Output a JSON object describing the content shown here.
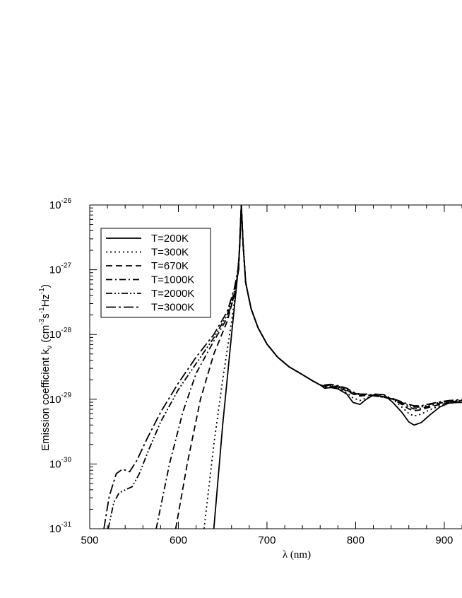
{
  "chart_data": {
    "type": "line",
    "xlabel": "λ (nm)",
    "ylabel": {
      "main": "Emission coefficient k",
      "sub": "ν",
      "units_open": " (cm",
      "units_exp1": "-3",
      "units_s": "s",
      "units_exp2": "-1",
      "units_hz": "Hz",
      "units_exp3": "-1",
      "units_close": ")"
    },
    "xlim": [
      500,
      920
    ],
    "ylim_log10": [
      -31,
      -26
    ],
    "y_scale": "log",
    "grid": false,
    "legend_position": "top-left",
    "x_ticks": [
      {
        "value": 500,
        "label": "500"
      },
      {
        "value": 600,
        "label": "600"
      },
      {
        "value": 700,
        "label": "700"
      },
      {
        "value": 800,
        "label": "800"
      },
      {
        "value": 900,
        "label": "900"
      }
    ],
    "y_ticks": [
      {
        "value": -26,
        "base": "10",
        "exp": "-26"
      },
      {
        "value": -27,
        "base": "10",
        "exp": "-27"
      },
      {
        "value": -28,
        "base": "10",
        "exp": "-28"
      },
      {
        "value": -29,
        "base": "10",
        "exp": "-29"
      },
      {
        "value": -30,
        "base": "10",
        "exp": "-30"
      },
      {
        "value": -31,
        "base": "10",
        "exp": "-31"
      }
    ],
    "series": [
      {
        "name": "T=200K",
        "dash": "solid",
        "points": [
          [
            640,
            -31
          ],
          [
            650,
            -29.4
          ],
          [
            660,
            -28.0
          ],
          [
            666,
            -27.2
          ],
          [
            669,
            -26.7
          ],
          [
            671,
            -26.0
          ]
        ]
      },
      {
        "name": "T=300K",
        "dash": "dotted",
        "points": [
          [
            629,
            -31
          ],
          [
            640,
            -29.7
          ],
          [
            650,
            -28.7
          ],
          [
            660,
            -27.8
          ],
          [
            666,
            -27.2
          ],
          [
            669,
            -26.7
          ],
          [
            671,
            -26.0
          ]
        ]
      },
      {
        "name": "T=670K",
        "dash": "dashed",
        "points": [
          [
            597,
            -31
          ],
          [
            610,
            -30.0
          ],
          [
            625,
            -29.0
          ],
          [
            640,
            -28.3
          ],
          [
            655,
            -27.8
          ],
          [
            663,
            -27.4
          ],
          [
            668,
            -27.0
          ],
          [
            671,
            -26.0
          ]
        ]
      },
      {
        "name": "T=1000K",
        "dash": "dashdot",
        "points": [
          [
            575,
            -31
          ],
          [
            590,
            -30.0
          ],
          [
            605,
            -29.2
          ],
          [
            620,
            -28.6
          ],
          [
            640,
            -28.1
          ],
          [
            655,
            -27.75
          ],
          [
            663,
            -27.4
          ],
          [
            668,
            -27.0
          ],
          [
            671,
            -26.0
          ]
        ]
      },
      {
        "name": "T=2000K",
        "dash": "dashdotdot",
        "points": [
          [
            521,
            -31
          ],
          [
            527,
            -30.6
          ],
          [
            533,
            -30.45
          ],
          [
            540,
            -30.4
          ],
          [
            548,
            -30.35
          ],
          [
            556,
            -30.15
          ],
          [
            566,
            -29.8
          ],
          [
            580,
            -29.35
          ],
          [
            600,
            -28.85
          ],
          [
            620,
            -28.45
          ],
          [
            640,
            -28.05
          ],
          [
            655,
            -27.7
          ],
          [
            663,
            -27.35
          ],
          [
            668,
            -27.0
          ],
          [
            671,
            -26.0
          ]
        ]
      },
      {
        "name": "T=3000K",
        "dash": "longdashdot",
        "points": [
          [
            516,
            -31
          ],
          [
            522,
            -30.5
          ],
          [
            530,
            -30.15
          ],
          [
            537,
            -30.08
          ],
          [
            545,
            -30.12
          ],
          [
            553,
            -29.95
          ],
          [
            565,
            -29.6
          ],
          [
            580,
            -29.2
          ],
          [
            600,
            -28.75
          ],
          [
            620,
            -28.35
          ],
          [
            640,
            -28.0
          ],
          [
            655,
            -27.65
          ],
          [
            663,
            -27.3
          ],
          [
            668,
            -26.95
          ],
          [
            671,
            -26.0
          ]
        ]
      }
    ],
    "common_right": [
      [
        671,
        -26.0
      ],
      [
        673,
        -26.6
      ],
      [
        676,
        -27.2
      ],
      [
        682,
        -27.6
      ],
      [
        690,
        -27.9
      ],
      [
        700,
        -28.15
      ],
      [
        712,
        -28.35
      ],
      [
        725,
        -28.5
      ],
      [
        740,
        -28.62
      ],
      [
        752,
        -28.72
      ],
      [
        760,
        -28.78
      ]
    ],
    "right_tails": {
      "T=200K": [
        [
          760,
          -28.78
        ],
        [
          765,
          -28.83
        ],
        [
          772,
          -28.82
        ],
        [
          780,
          -28.84
        ],
        [
          790,
          -28.92
        ],
        [
          797,
          -29.05
        ],
        [
          805,
          -29.08
        ],
        [
          812,
          -29.0
        ],
        [
          822,
          -28.92
        ],
        [
          832,
          -28.93
        ],
        [
          842,
          -29.05
        ],
        [
          852,
          -29.2
        ],
        [
          860,
          -29.35
        ],
        [
          866,
          -29.4
        ],
        [
          874,
          -29.36
        ],
        [
          884,
          -29.24
        ],
        [
          895,
          -29.12
        ],
        [
          905,
          -29.06
        ],
        [
          915,
          -29.05
        ],
        [
          920,
          -29.05
        ]
      ],
      "T=300K": [
        [
          760,
          -28.78
        ],
        [
          765,
          -28.82
        ],
        [
          772,
          -28.81
        ],
        [
          780,
          -28.83
        ],
        [
          790,
          -28.9
        ],
        [
          797,
          -28.98
        ],
        [
          805,
          -29.02
        ],
        [
          812,
          -28.98
        ],
        [
          822,
          -28.93
        ],
        [
          832,
          -28.93
        ],
        [
          842,
          -29.0
        ],
        [
          852,
          -29.12
        ],
        [
          860,
          -29.22
        ],
        [
          866,
          -29.26
        ],
        [
          874,
          -29.23
        ],
        [
          884,
          -29.16
        ],
        [
          895,
          -29.1
        ],
        [
          905,
          -29.06
        ],
        [
          915,
          -29.05
        ],
        [
          920,
          -29.05
        ]
      ],
      "T=670K": [
        [
          760,
          -28.78
        ],
        [
          765,
          -28.8
        ],
        [
          772,
          -28.8
        ],
        [
          780,
          -28.82
        ],
        [
          790,
          -28.87
        ],
        [
          797,
          -28.92
        ],
        [
          805,
          -28.95
        ],
        [
          812,
          -28.94
        ],
        [
          822,
          -28.94
        ],
        [
          832,
          -28.96
        ],
        [
          842,
          -29.0
        ],
        [
          852,
          -29.08
        ],
        [
          860,
          -29.15
        ],
        [
          866,
          -29.18
        ],
        [
          874,
          -29.16
        ],
        [
          884,
          -29.12
        ],
        [
          895,
          -29.08
        ],
        [
          905,
          -29.05
        ],
        [
          915,
          -29.04
        ],
        [
          920,
          -29.04
        ]
      ],
      "T=1000K": [
        [
          760,
          -28.78
        ],
        [
          765,
          -28.8
        ],
        [
          772,
          -28.79
        ],
        [
          780,
          -28.81
        ],
        [
          790,
          -28.86
        ],
        [
          797,
          -28.91
        ],
        [
          805,
          -28.94
        ],
        [
          812,
          -28.93
        ],
        [
          822,
          -28.95
        ],
        [
          832,
          -28.97
        ],
        [
          842,
          -29.0
        ],
        [
          852,
          -29.06
        ],
        [
          860,
          -29.12
        ],
        [
          866,
          -29.15
        ],
        [
          874,
          -29.14
        ],
        [
          884,
          -29.1
        ],
        [
          895,
          -29.06
        ],
        [
          905,
          -29.04
        ],
        [
          915,
          -29.03
        ],
        [
          920,
          -29.03
        ]
      ],
      "T=2000K": [
        [
          760,
          -28.77
        ],
        [
          765,
          -28.79
        ],
        [
          772,
          -28.78
        ],
        [
          780,
          -28.8
        ],
        [
          790,
          -28.84
        ],
        [
          797,
          -28.9
        ],
        [
          805,
          -28.93
        ],
        [
          812,
          -28.93
        ],
        [
          822,
          -28.95
        ],
        [
          832,
          -28.97
        ],
        [
          842,
          -29.0
        ],
        [
          852,
          -29.05
        ],
        [
          860,
          -29.1
        ],
        [
          866,
          -29.12
        ],
        [
          874,
          -29.12
        ],
        [
          884,
          -29.08
        ],
        [
          895,
          -29.05
        ],
        [
          905,
          -29.03
        ],
        [
          915,
          -29.02
        ],
        [
          920,
          -29.02
        ]
      ],
      "T=3000K": [
        [
          760,
          -28.76
        ],
        [
          765,
          -28.78
        ],
        [
          772,
          -28.77
        ],
        [
          780,
          -28.79
        ],
        [
          790,
          -28.83
        ],
        [
          797,
          -28.89
        ],
        [
          805,
          -28.92
        ],
        [
          812,
          -28.92
        ],
        [
          822,
          -28.94
        ],
        [
          832,
          -28.96
        ],
        [
          842,
          -28.99
        ],
        [
          852,
          -29.04
        ],
        [
          860,
          -29.08
        ],
        [
          866,
          -29.1
        ],
        [
          874,
          -29.1
        ],
        [
          884,
          -29.07
        ],
        [
          895,
          -29.04
        ],
        [
          905,
          -29.02
        ],
        [
          915,
          -29.01
        ],
        [
          920,
          -29.01
        ]
      ]
    }
  }
}
